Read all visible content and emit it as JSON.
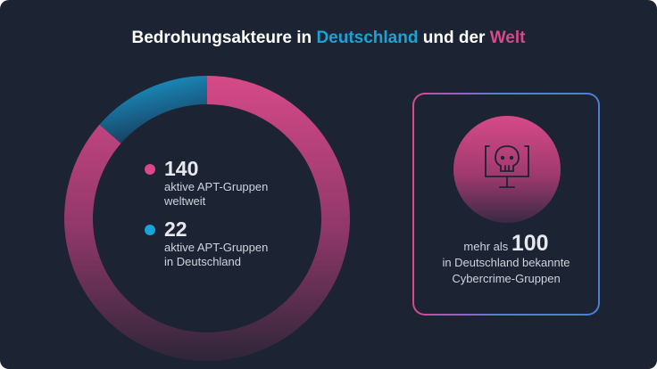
{
  "title": {
    "part1": "Bedrohungsakteure in ",
    "highlight1": "Deutschland",
    "part2": " und der ",
    "highlight2": "Welt"
  },
  "colors": {
    "world": "#d9488a",
    "germany": "#1aa3d8",
    "background": "#1c2333"
  },
  "chart_data": {
    "type": "pie",
    "variant": "donut",
    "categories": [
      "aktive APT-Gruppen weltweit",
      "aktive APT-Gruppen in Deutschland"
    ],
    "values": [
      140,
      22
    ],
    "colors": [
      "#d9488a",
      "#1aa3d8"
    ]
  },
  "legend": [
    {
      "value": "140",
      "line1": "aktive APT-Gruppen",
      "line2": "weltweit"
    },
    {
      "value": "22",
      "line1": "aktive APT-Gruppen",
      "line2": "in Deutschland"
    }
  ],
  "card": {
    "icon": "skull-monitor-icon",
    "prefix": "mehr als ",
    "value": "100",
    "line2": "in Deutschland bekannte",
    "line3": "Cybercrime-Gruppen"
  }
}
